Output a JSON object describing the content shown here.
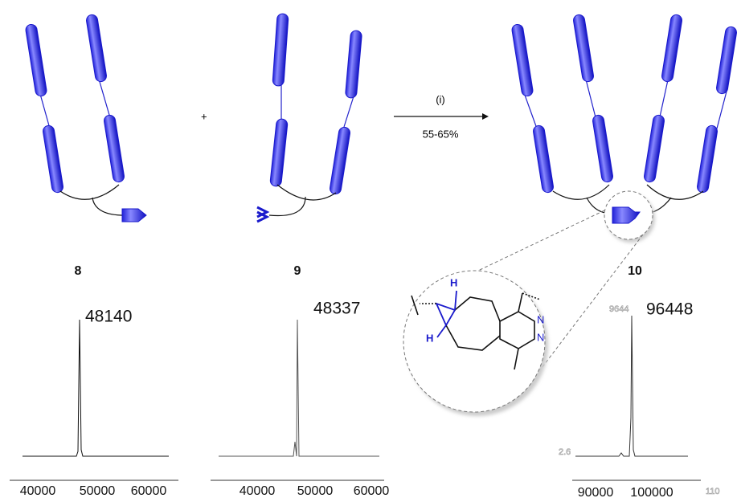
{
  "reaction": {
    "plus": "+",
    "condition": "(i)",
    "yield": "55-65%"
  },
  "compounds": [
    {
      "label": "8",
      "mass": "48140",
      "ticks": [
        "40000",
        "50000",
        "60000"
      ]
    },
    {
      "label": "9",
      "mass": "48337",
      "ticks": [
        "40000",
        "50000",
        "60000"
      ]
    },
    {
      "label": "10",
      "mass": "96448",
      "ticks": [
        "90000",
        "100000"
      ],
      "ghost_labels": [
        "9644",
        "2.6",
        "110"
      ]
    }
  ],
  "structure": {
    "atoms": [
      "H",
      "H",
      "N",
      "N"
    ]
  }
}
